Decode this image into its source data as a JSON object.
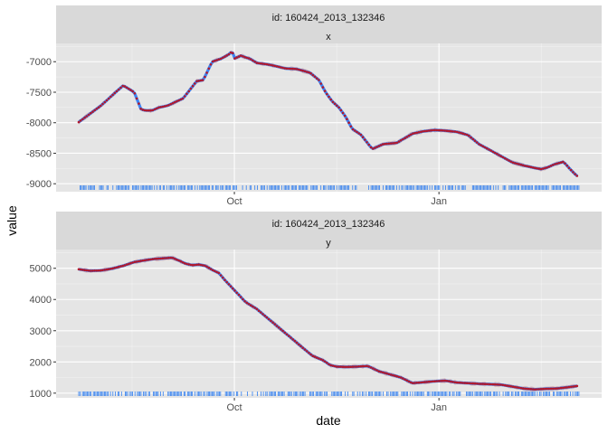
{
  "chart_data": {
    "type": "scatter",
    "xlabel": "date",
    "ylabel": "value",
    "x_ticks": [
      "Oct",
      "Jan"
    ],
    "x_tick_days": [
      70,
      162
    ],
    "x_range_days": [
      0,
      225
    ],
    "grid": true,
    "legend": "none",
    "colors": {
      "panel_bg": "#e5e5e5",
      "strip_bg": "#d9d9d9",
      "grid_major": "#ffffff",
      "points": "#b2182b",
      "line": "#3d85f5",
      "rug": "#2f7ef0",
      "ribbon": "#d48a86"
    },
    "panels": [
      {
        "strip_id": "id: 160424_2013_132346",
        "strip_var": "x",
        "ylim": [
          -9130,
          -6700
        ],
        "y_ticks": [
          -7000,
          -7500,
          -8000,
          -8500,
          -9000
        ],
        "y_tick_labels": [
          "-7000",
          "-7500",
          "-8000",
          "-8500",
          "-9000"
        ],
        "series_x_days": [
          0,
          10,
          16,
          20,
          25,
          28,
          30,
          33,
          36,
          40,
          47,
          53,
          56,
          60,
          64,
          68,
          69,
          70,
          73,
          75,
          77,
          80,
          86,
          93,
          98,
          101,
          104,
          108,
          111,
          114,
          117,
          120,
          123,
          127,
          132,
          137,
          143,
          150,
          155,
          160,
          165,
          170,
          175,
          180,
          185,
          190,
          195,
          200,
          205,
          208,
          211,
          214,
          218,
          222,
          224
        ],
        "series_y": [
          -7990,
          -7720,
          -7520,
          -7390,
          -7500,
          -7780,
          -7800,
          -7800,
          -7750,
          -7720,
          -7600,
          -7320,
          -7300,
          -7000,
          -6950,
          -6870,
          -6820,
          -6950,
          -6900,
          -6930,
          -6950,
          -7020,
          -7050,
          -7110,
          -7120,
          -7150,
          -7180,
          -7300,
          -7500,
          -7650,
          -7750,
          -7900,
          -8100,
          -8200,
          -8430,
          -8350,
          -8330,
          -8180,
          -8140,
          -8120,
          -8130,
          -8150,
          -8200,
          -8350,
          -8450,
          -8550,
          -8650,
          -8700,
          -8740,
          -8760,
          -8730,
          -8680,
          -8640,
          -8800,
          -8870
        ]
      },
      {
        "strip_id": "id: 160424_2013_132346",
        "strip_var": "y",
        "ylim": [
          850,
          5600
        ],
        "y_ticks": [
          1000,
          2000,
          3000,
          4000,
          5000
        ],
        "y_tick_labels": [
          "1000",
          "2000",
          "3000",
          "4000",
          "5000"
        ],
        "series_x_days": [
          0,
          5,
          10,
          15,
          20,
          25,
          30,
          34,
          38,
          42,
          45,
          48,
          51,
          54,
          57,
          60,
          63,
          66,
          70,
          75,
          80,
          90,
          100,
          105,
          110,
          113,
          116,
          120,
          125,
          130,
          135,
          140,
          145,
          150,
          155,
          160,
          165,
          170,
          180,
          190,
          200,
          205,
          210,
          215,
          220,
          224
        ],
        "series_y": [
          4970,
          4920,
          4930,
          4990,
          5080,
          5200,
          5260,
          5300,
          5320,
          5340,
          5250,
          5150,
          5100,
          5120,
          5080,
          4950,
          4850,
          4600,
          4300,
          3920,
          3700,
          3100,
          2500,
          2200,
          2050,
          1900,
          1850,
          1840,
          1850,
          1870,
          1700,
          1600,
          1500,
          1320,
          1350,
          1380,
          1400,
          1340,
          1300,
          1270,
          1150,
          1120,
          1140,
          1150,
          1190,
          1230
        ]
      }
    ]
  }
}
